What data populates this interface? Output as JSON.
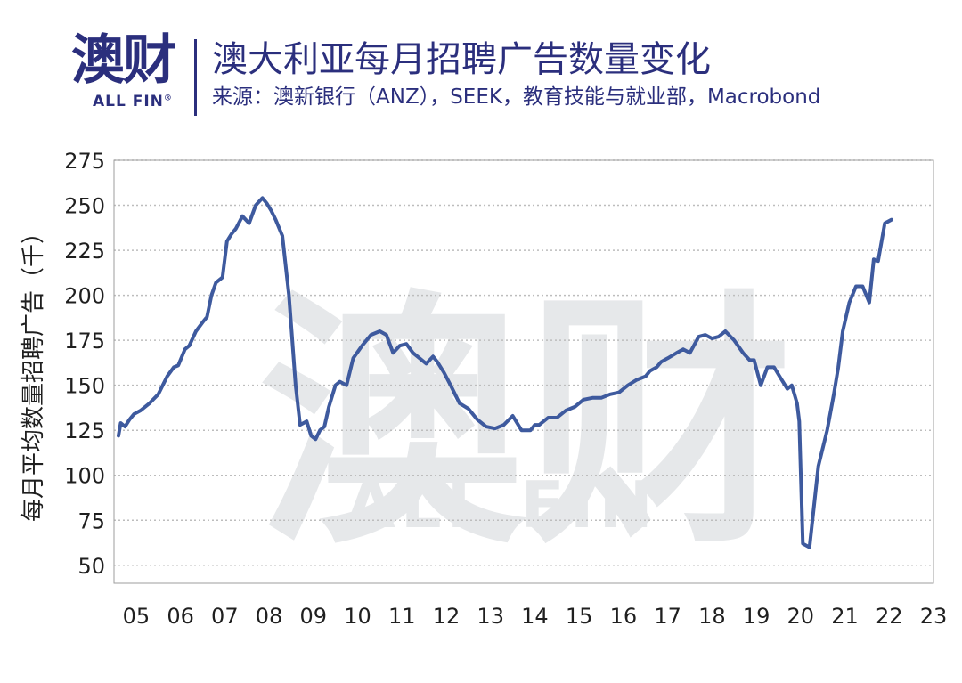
{
  "logo": {
    "chinese": "澳财",
    "english": "ALL FIN",
    "registered": "®"
  },
  "header": {
    "title": "澳大利亚每月招聘广告数量变化",
    "source": "来源：澳新银行（ANZ），SEEK，教育技能与就业部，Macrobond"
  },
  "colors": {
    "line": "#3e5a9e",
    "brand": "#2b2f7d",
    "grid": "#bdbdbd",
    "watermark": "#e6e8ea"
  },
  "chart_data": {
    "type": "line",
    "title": "澳大利亚每月招聘广告数量变化",
    "xlabel": "",
    "ylabel": "每月平均数量招聘广告（千）",
    "xlim": [
      2004.5,
      2023
    ],
    "ylim": [
      40,
      275
    ],
    "yticks": [
      50,
      75,
      100,
      125,
      150,
      175,
      200,
      225,
      250,
      275
    ],
    "xticks": [
      {
        "v": 2005,
        "label": "05"
      },
      {
        "v": 2006,
        "label": "06"
      },
      {
        "v": 2007,
        "label": "07"
      },
      {
        "v": 2008,
        "label": "08"
      },
      {
        "v": 2009,
        "label": "09"
      },
      {
        "v": 2010,
        "label": "10"
      },
      {
        "v": 2011,
        "label": "11"
      },
      {
        "v": 2012,
        "label": "12"
      },
      {
        "v": 2013,
        "label": "13"
      },
      {
        "v": 2014,
        "label": "14"
      },
      {
        "v": 2015,
        "label": "15"
      },
      {
        "v": 2016,
        "label": "16"
      },
      {
        "v": 2017,
        "label": "17"
      },
      {
        "v": 2018,
        "label": "18"
      },
      {
        "v": 2019,
        "label": "19"
      },
      {
        "v": 2020,
        "label": "20"
      },
      {
        "v": 2021,
        "label": "21"
      },
      {
        "v": 2022,
        "label": "22"
      },
      {
        "v": 2023,
        "label": "23"
      }
    ],
    "grid": true,
    "legend": "none",
    "series": [
      {
        "name": "",
        "x": [
          2004.6,
          2004.65,
          2004.75,
          2004.85,
          2004.95,
          2005.1,
          2005.3,
          2005.5,
          2005.7,
          2005.85,
          2005.95,
          2006.1,
          2006.2,
          2006.35,
          2006.5,
          2006.6,
          2006.7,
          2006.8,
          2006.95,
          2007.05,
          2007.15,
          2007.25,
          2007.4,
          2007.55,
          2007.7,
          2007.85,
          2007.95,
          2008.05,
          2008.15,
          2008.3,
          2008.45,
          2008.6,
          2008.7,
          2008.85,
          2008.95,
          2009.05,
          2009.15,
          2009.25,
          2009.35,
          2009.5,
          2009.6,
          2009.75,
          2009.9,
          2010.1,
          2010.3,
          2010.5,
          2010.65,
          2010.8,
          2010.95,
          2011.1,
          2011.25,
          2011.4,
          2011.55,
          2011.7,
          2011.8,
          2011.95,
          2012.1,
          2012.3,
          2012.5,
          2012.7,
          2012.9,
          2013.1,
          2013.3,
          2013.5,
          2013.7,
          2013.9,
          2014.0,
          2014.1,
          2014.3,
          2014.5,
          2014.7,
          2014.9,
          2015.1,
          2015.3,
          2015.5,
          2015.7,
          2015.9,
          2016.1,
          2016.3,
          2016.5,
          2016.6,
          2016.75,
          2016.85,
          2017.0,
          2017.2,
          2017.35,
          2017.5,
          2017.7,
          2017.85,
          2018.0,
          2018.15,
          2018.3,
          2018.5,
          2018.7,
          2018.85,
          2018.95,
          2019.1,
          2019.25,
          2019.4,
          2019.55,
          2019.7,
          2019.8,
          2019.92,
          2019.97,
          2020.05,
          2020.2,
          2020.4,
          2020.6,
          2020.75,
          2020.85,
          2020.95,
          2021.1,
          2021.25,
          2021.4,
          2021.55,
          2021.65,
          2021.75,
          2021.9,
          2022.05
        ],
        "values": [
          122,
          129,
          127,
          131,
          134,
          136,
          140,
          145,
          155,
          160,
          161,
          170,
          172,
          180,
          185,
          188,
          200,
          207,
          210,
          230,
          234,
          237,
          244,
          240,
          250,
          254,
          251,
          247,
          242,
          233,
          200,
          150,
          128,
          130,
          122,
          120,
          125,
          127,
          138,
          150,
          152,
          150,
          165,
          172,
          178,
          180,
          178,
          168,
          172,
          173,
          168,
          165,
          162,
          166,
          163,
          157,
          150,
          140,
          137,
          131,
          127,
          126,
          128,
          133,
          125,
          125,
          128,
          128,
          132,
          132,
          136,
          138,
          142,
          143,
          143,
          145,
          146,
          150,
          153,
          155,
          158,
          160,
          163,
          165,
          168,
          170,
          168,
          177,
          178,
          176,
          177,
          180,
          175,
          168,
          164,
          164,
          150,
          160,
          160,
          154,
          148,
          150,
          140,
          130,
          62,
          60,
          105,
          125,
          145,
          160,
          180,
          196,
          205,
          205,
          196,
          220,
          219,
          240,
          242
        ]
      }
    ]
  }
}
